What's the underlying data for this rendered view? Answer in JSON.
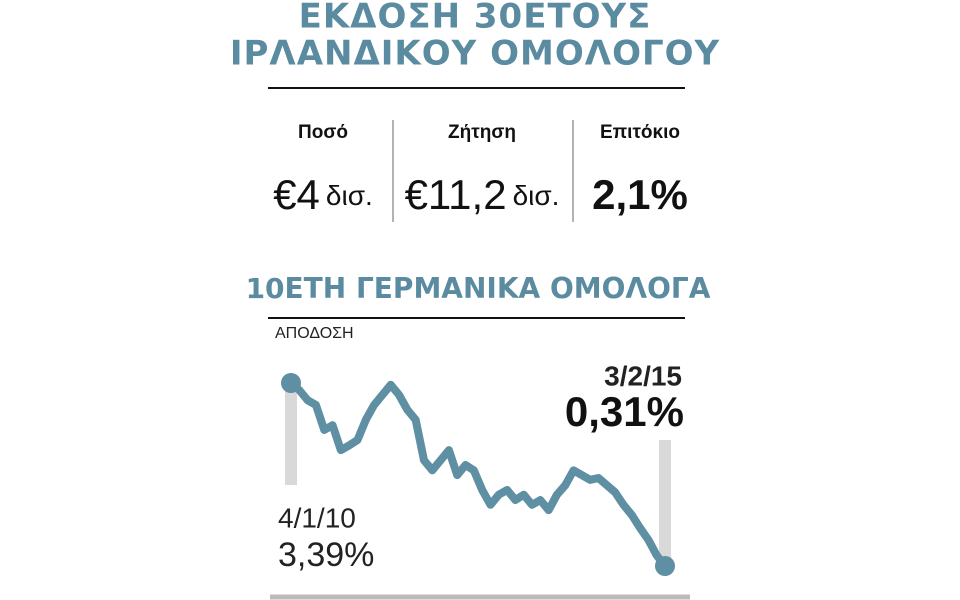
{
  "header": {
    "title_lines": [
      "ΕΚΔΟΣΗ 30ΕΤΟΥΣ",
      "ΙΡΛΑΝΔΙΚΟΥ ΟΜΟΛΟΓΟΥ"
    ]
  },
  "stats": [
    {
      "label": "Ποσό",
      "value": "€4",
      "unit": "δισ."
    },
    {
      "label": "Ζήτηση",
      "value": "€11,2",
      "unit": "δισ."
    },
    {
      "label": "Επιτόκιο",
      "value": "2,1%"
    }
  ],
  "chart_data": {
    "type": "line",
    "title": "10ΕΤΗ ΓΕΡΜΑΝΙΚΑ ΟΜΟΛΟΓΑ",
    "subtitle": "ΑΠΟΔΟΣΗ",
    "color": "#5e8fa3",
    "categories": [
      "4/1/10",
      null,
      null,
      null,
      null,
      null,
      null,
      null,
      null,
      null,
      null,
      null,
      null,
      null,
      null,
      null,
      null,
      null,
      null,
      null,
      null,
      null,
      null,
      null,
      null,
      null,
      null,
      null,
      null,
      null,
      null,
      null,
      null,
      null,
      null,
      null,
      null,
      null,
      null,
      null,
      null,
      null,
      null,
      null,
      null,
      "3/2/15"
    ],
    "values": [
      3.39,
      3.27,
      3.1,
      3.02,
      2.6,
      2.68,
      2.26,
      2.34,
      2.43,
      2.77,
      3.02,
      3.19,
      3.36,
      3.19,
      2.94,
      2.77,
      2.09,
      1.92,
      2.09,
      2.26,
      1.84,
      2.01,
      1.92,
      1.59,
      1.34,
      1.51,
      1.59,
      1.42,
      1.51,
      1.34,
      1.42,
      1.25,
      1.51,
      1.67,
      1.92,
      1.84,
      1.76,
      1.79,
      1.67,
      1.55,
      1.34,
      1.17,
      0.95,
      0.75,
      0.49,
      0.31
    ],
    "value_labels": [
      "3,39%",
      null,
      null,
      null,
      null,
      null,
      null,
      null,
      null,
      null,
      null,
      null,
      null,
      null,
      null,
      null,
      null,
      null,
      null,
      null,
      null,
      null,
      null,
      null,
      null,
      null,
      null,
      null,
      null,
      null,
      null,
      null,
      null,
      null,
      null,
      null,
      null,
      null,
      null,
      null,
      null,
      null,
      null,
      null,
      null,
      "0,31%"
    ]
  }
}
